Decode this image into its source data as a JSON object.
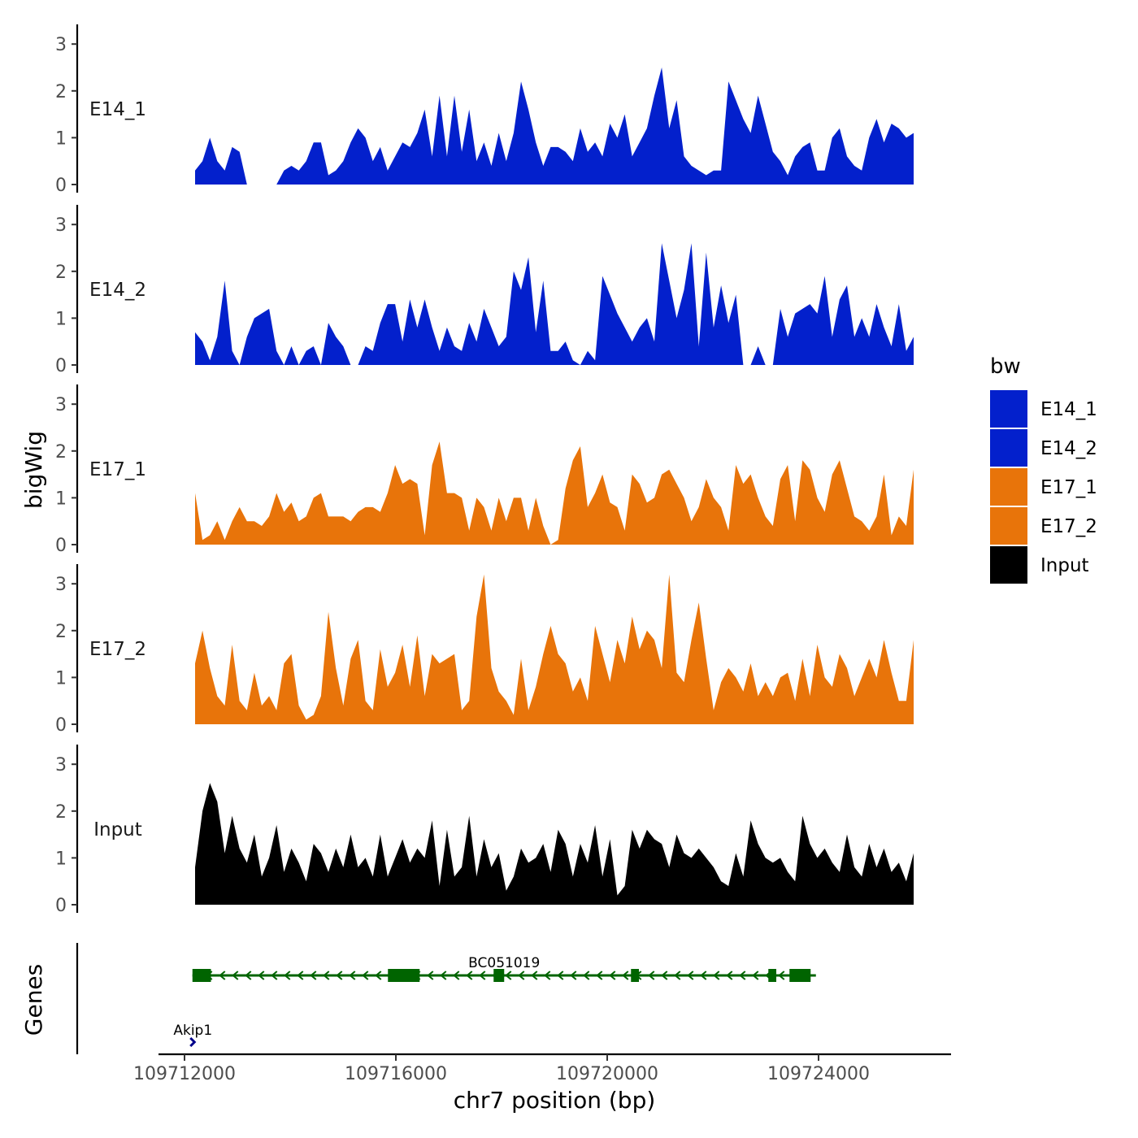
{
  "chart_data": {
    "type": "area",
    "subtype": "genome-coverage-tracks",
    "y_axis_title": "bigWig",
    "x_axis_title": "chr7 position (bp)",
    "x_range": [
      109711500,
      109726500
    ],
    "x_ticks": [
      109712000,
      109716000,
      109720000,
      109724000
    ],
    "x_tick_labels": [
      "109712000",
      "109716000",
      "109720000",
      "109724000"
    ],
    "y_range": [
      0,
      3.4
    ],
    "y_ticks": [
      0,
      1,
      2,
      3
    ],
    "y_tick_labels": [
      "0",
      "1",
      "2",
      "3"
    ],
    "legend": {
      "title": "bw",
      "entries": [
        {
          "label": "E14_1",
          "color": "#0320cc"
        },
        {
          "label": "E14_2",
          "color": "#0320cc"
        },
        {
          "label": "E17_1",
          "color": "#e8740a"
        },
        {
          "label": "E17_2",
          "color": "#e8740a"
        },
        {
          "label": "Input",
          "color": "#000000"
        }
      ]
    },
    "series": [
      {
        "name": "E14_1",
        "color": "#0320cc",
        "x_start": 109712200,
        "x_end": 109725800,
        "values": [
          0.3,
          0.5,
          1.0,
          0.5,
          0.3,
          0.8,
          0.7,
          0.0,
          0.0,
          0.0,
          0.0,
          0.0,
          0.3,
          0.4,
          0.3,
          0.5,
          0.9,
          0.9,
          0.2,
          0.3,
          0.5,
          0.9,
          1.2,
          1.0,
          0.5,
          0.8,
          0.3,
          0.6,
          0.9,
          0.8,
          1.1,
          1.6,
          0.6,
          1.9,
          0.6,
          1.9,
          0.7,
          1.6,
          0.5,
          0.9,
          0.4,
          1.1,
          0.5,
          1.1,
          2.2,
          1.6,
          0.9,
          0.4,
          0.8,
          0.8,
          0.7,
          0.5,
          1.2,
          0.7,
          0.9,
          0.6,
          1.3,
          1.0,
          1.5,
          0.6,
          0.9,
          1.2,
          1.9,
          2.5,
          1.2,
          1.8,
          0.6,
          0.4,
          0.3,
          0.2,
          0.3,
          0.3,
          2.2,
          1.8,
          1.4,
          1.1,
          1.9,
          1.3,
          0.7,
          0.5,
          0.2,
          0.6,
          0.8,
          0.9,
          0.3,
          0.3,
          1.0,
          1.2,
          0.6,
          0.4,
          0.3,
          1.0,
          1.4,
          0.9,
          1.3,
          1.2,
          1.0,
          1.1
        ],
        "label": "E14_1"
      },
      {
        "name": "E14_2",
        "color": "#0320cc",
        "x_start": 109712200,
        "x_end": 109725800,
        "values": [
          0.7,
          0.5,
          0.1,
          0.6,
          1.8,
          0.3,
          0.0,
          0.6,
          1.0,
          1.1,
          1.2,
          0.3,
          0.0,
          0.4,
          0.0,
          0.3,
          0.4,
          0.0,
          0.9,
          0.6,
          0.4,
          0.0,
          0.0,
          0.4,
          0.3,
          0.9,
          1.3,
          1.3,
          0.5,
          1.4,
          0.8,
          1.4,
          0.8,
          0.3,
          0.8,
          0.4,
          0.3,
          0.9,
          0.5,
          1.2,
          0.8,
          0.4,
          0.6,
          2.0,
          1.6,
          2.3,
          0.7,
          1.8,
          0.3,
          0.3,
          0.5,
          0.1,
          0.0,
          0.3,
          0.1,
          1.9,
          1.5,
          1.1,
          0.8,
          0.5,
          0.8,
          1.0,
          0.5,
          2.6,
          1.8,
          1.0,
          1.6,
          2.6,
          0.4,
          2.4,
          0.8,
          1.7,
          0.9,
          1.5,
          0.0,
          0.0,
          0.4,
          0.0,
          0.0,
          1.2,
          0.6,
          1.1,
          1.2,
          1.3,
          1.1,
          1.9,
          0.6,
          1.4,
          1.7,
          0.6,
          1.0,
          0.6,
          1.3,
          0.8,
          0.4,
          1.3,
          0.3,
          0.6
        ],
        "label": "E14_2"
      },
      {
        "name": "E17_1",
        "color": "#e8740a",
        "x_start": 109712200,
        "x_end": 109725800,
        "values": [
          1.1,
          0.1,
          0.2,
          0.5,
          0.1,
          0.5,
          0.8,
          0.5,
          0.5,
          0.4,
          0.6,
          1.1,
          0.7,
          0.9,
          0.5,
          0.6,
          1.0,
          1.1,
          0.6,
          0.6,
          0.6,
          0.5,
          0.7,
          0.8,
          0.8,
          0.7,
          1.1,
          1.7,
          1.3,
          1.4,
          1.3,
          0.2,
          1.7,
          2.2,
          1.1,
          1.1,
          1.0,
          0.3,
          1.0,
          0.8,
          0.3,
          1.0,
          0.5,
          1.0,
          1.0,
          0.3,
          1.0,
          0.4,
          0.0,
          0.1,
          1.2,
          1.8,
          2.1,
          0.8,
          1.1,
          1.5,
          0.9,
          0.8,
          0.3,
          1.5,
          1.3,
          0.9,
          1.0,
          1.5,
          1.6,
          1.3,
          1.0,
          0.5,
          0.8,
          1.4,
          1.0,
          0.8,
          0.3,
          1.7,
          1.3,
          1.5,
          1.0,
          0.6,
          0.4,
          1.4,
          1.7,
          0.5,
          1.8,
          1.6,
          1.0,
          0.7,
          1.5,
          1.8,
          1.2,
          0.6,
          0.5,
          0.3,
          0.6,
          1.5,
          0.2,
          0.6,
          0.4,
          1.6
        ],
        "label": "E17_1"
      },
      {
        "name": "E17_2",
        "color": "#e8740a",
        "x_start": 109712200,
        "x_end": 109725800,
        "values": [
          1.3,
          2.0,
          1.2,
          0.6,
          0.4,
          1.7,
          0.5,
          0.3,
          1.1,
          0.4,
          0.6,
          0.3,
          1.3,
          1.5,
          0.4,
          0.1,
          0.2,
          0.6,
          2.4,
          1.2,
          0.4,
          1.4,
          1.8,
          0.5,
          0.3,
          1.6,
          0.8,
          1.1,
          1.7,
          0.8,
          1.9,
          0.6,
          1.5,
          1.3,
          1.4,
          1.5,
          0.3,
          0.5,
          2.3,
          3.2,
          1.2,
          0.7,
          0.5,
          0.2,
          1.4,
          0.3,
          0.8,
          1.5,
          2.1,
          1.5,
          1.3,
          0.7,
          1.0,
          0.5,
          2.1,
          1.5,
          0.9,
          1.8,
          1.3,
          2.3,
          1.6,
          2.0,
          1.8,
          1.2,
          3.2,
          1.1,
          0.9,
          1.8,
          2.6,
          1.4,
          0.3,
          0.9,
          1.2,
          1.0,
          0.7,
          1.3,
          0.6,
          0.9,
          0.6,
          1.0,
          1.1,
          0.5,
          1.4,
          0.6,
          1.7,
          1.0,
          0.8,
          1.5,
          1.2,
          0.6,
          1.0,
          1.4,
          1.0,
          1.8,
          1.1,
          0.5,
          0.5,
          1.8
        ],
        "label": "E17_2"
      },
      {
        "name": "Input",
        "color": "#000000",
        "x_start": 109712200,
        "x_end": 109725800,
        "values": [
          0.8,
          2.0,
          2.6,
          2.2,
          1.1,
          1.9,
          1.2,
          0.9,
          1.5,
          0.6,
          1.0,
          1.7,
          0.7,
          1.2,
          0.9,
          0.5,
          1.3,
          1.1,
          0.7,
          1.2,
          0.8,
          1.5,
          0.8,
          1.0,
          0.6,
          1.5,
          0.6,
          1.0,
          1.4,
          0.9,
          1.2,
          1.0,
          1.8,
          0.4,
          1.6,
          0.6,
          0.8,
          1.9,
          0.6,
          1.4,
          0.8,
          1.1,
          0.3,
          0.6,
          1.2,
          0.9,
          1.0,
          1.3,
          0.7,
          1.6,
          1.3,
          0.6,
          1.3,
          0.9,
          1.7,
          0.6,
          1.4,
          0.2,
          0.4,
          1.6,
          1.2,
          1.6,
          1.4,
          1.3,
          0.8,
          1.5,
          1.1,
          1.0,
          1.2,
          1.0,
          0.8,
          0.5,
          0.4,
          1.1,
          0.6,
          1.8,
          1.3,
          1.0,
          0.9,
          1.0,
          0.7,
          0.5,
          1.9,
          1.3,
          1.0,
          1.2,
          0.9,
          0.7,
          1.5,
          0.8,
          0.6,
          1.3,
          0.8,
          1.2,
          0.7,
          0.9,
          0.5,
          1.1
        ],
        "label": "Input"
      }
    ],
    "genes_track": {
      "title": "Genes",
      "genes": [
        {
          "name": "BC051019",
          "color": "#006400",
          "start": 109712150,
          "end": 109723950,
          "strand": "-",
          "exons": [
            [
              109712150,
              109712500
            ],
            [
              109715850,
              109716450
            ],
            [
              109717850,
              109718050
            ],
            [
              109720450,
              109720600
            ],
            [
              109723050,
              109723200
            ],
            [
              109723450,
              109723850
            ]
          ]
        },
        {
          "name": "Akip1",
          "color": "#00008b",
          "start": 109712050,
          "end": 109712200,
          "strand": "+",
          "exons": []
        }
      ]
    }
  }
}
